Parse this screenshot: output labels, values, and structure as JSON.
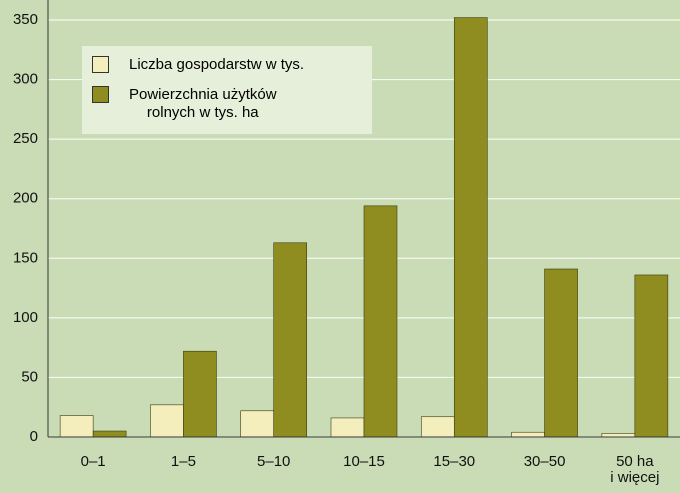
{
  "chart_data": {
    "type": "bar",
    "categories": [
      "0–1",
      "1–5",
      "5–10",
      "10–15",
      "15–30",
      "30–50",
      "50 ha\ni więcej"
    ],
    "series": [
      {
        "name": "Liczba gospodarstw w tys.",
        "color": "#f4eebc",
        "values": [
          18,
          27,
          22,
          16,
          17,
          4,
          3
        ]
      },
      {
        "name": "Powierzchnia użytków\nrolnych w tys. ha",
        "color": "#8f8d1f",
        "values": [
          5,
          72,
          163,
          194,
          352,
          141,
          136
        ]
      }
    ],
    "ylim": [
      0,
      350
    ],
    "yticks": [
      0,
      50,
      100,
      150,
      200,
      250,
      300,
      350
    ],
    "grid": true,
    "legend": "top-left"
  }
}
